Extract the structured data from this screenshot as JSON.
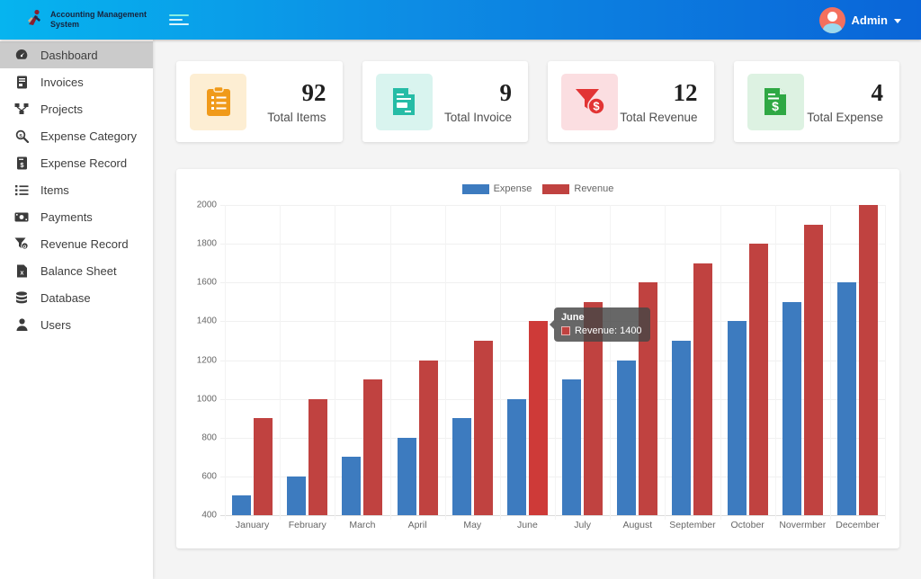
{
  "header": {
    "app_title_line1": "Accounting Management",
    "app_title_line2": "System",
    "user_name": "Admin",
    "gradient": [
      "#06b4ef",
      "#0a65d8"
    ]
  },
  "sidebar": {
    "items": [
      {
        "label": "Dashboard",
        "icon": "dashboard-icon",
        "active": true
      },
      {
        "label": "Invoices",
        "icon": "invoice-icon",
        "active": false
      },
      {
        "label": "Projects",
        "icon": "project-diagram-icon",
        "active": false
      },
      {
        "label": "Expense Category",
        "icon": "search-dollar-icon",
        "active": false
      },
      {
        "label": "Expense Record",
        "icon": "file-invoice-dollar-icon",
        "active": false
      },
      {
        "label": "Items",
        "icon": "list-icon",
        "active": false
      },
      {
        "label": "Payments",
        "icon": "money-bill-icon",
        "active": false
      },
      {
        "label": "Revenue Record",
        "icon": "funnel-dollar-icon",
        "active": false
      },
      {
        "label": "Balance Sheet",
        "icon": "file-excel-icon",
        "active": false
      },
      {
        "label": "Database",
        "icon": "database-icon",
        "active": false
      },
      {
        "label": "Users",
        "icon": "user-icon",
        "active": false
      }
    ]
  },
  "cards": [
    {
      "value": "92",
      "label": "Total Items",
      "icon": "clipboard-list-icon",
      "icon_color": "#f09a1a",
      "icon_bg": "#fdeed3"
    },
    {
      "value": "9",
      "label": "Total Invoice",
      "icon": "file-invoice-icon",
      "icon_color": "#26bca6",
      "icon_bg": "#d9f4ef"
    },
    {
      "value": "12",
      "label": "Total Revenue",
      "icon": "funnel-dollar-icon",
      "icon_color": "#e23434",
      "icon_bg": "#fbdee1"
    },
    {
      "value": "4",
      "label": "Total Expense",
      "icon": "file-invoice-dollar-icon",
      "icon_color": "#2fa844",
      "icon_bg": "#ddf2e2"
    }
  ],
  "chart_data": {
    "type": "bar",
    "categories": [
      "January",
      "February",
      "March",
      "April",
      "May",
      "June",
      "July",
      "August",
      "September",
      "October",
      "Novermber",
      "December"
    ],
    "series": [
      {
        "name": "Expense",
        "color": "#3d7bbf",
        "values": [
          500,
          600,
          700,
          800,
          900,
          1000,
          1100,
          1200,
          1300,
          1400,
          1500,
          1600
        ]
      },
      {
        "name": "Revenue",
        "color": "#c04240",
        "values": [
          900,
          1000,
          1100,
          1200,
          1300,
          1400,
          1500,
          1600,
          1700,
          1800,
          1900,
          2000
        ]
      }
    ],
    "ylim": [
      400,
      2000
    ],
    "ytick_step": 200,
    "grid": true,
    "legend_position": "top",
    "tooltip": {
      "category": "June",
      "series": "Revenue",
      "value": 1400,
      "title": "June",
      "text": "Revenue: 1400",
      "highlight_color": "#ce3a38"
    }
  }
}
